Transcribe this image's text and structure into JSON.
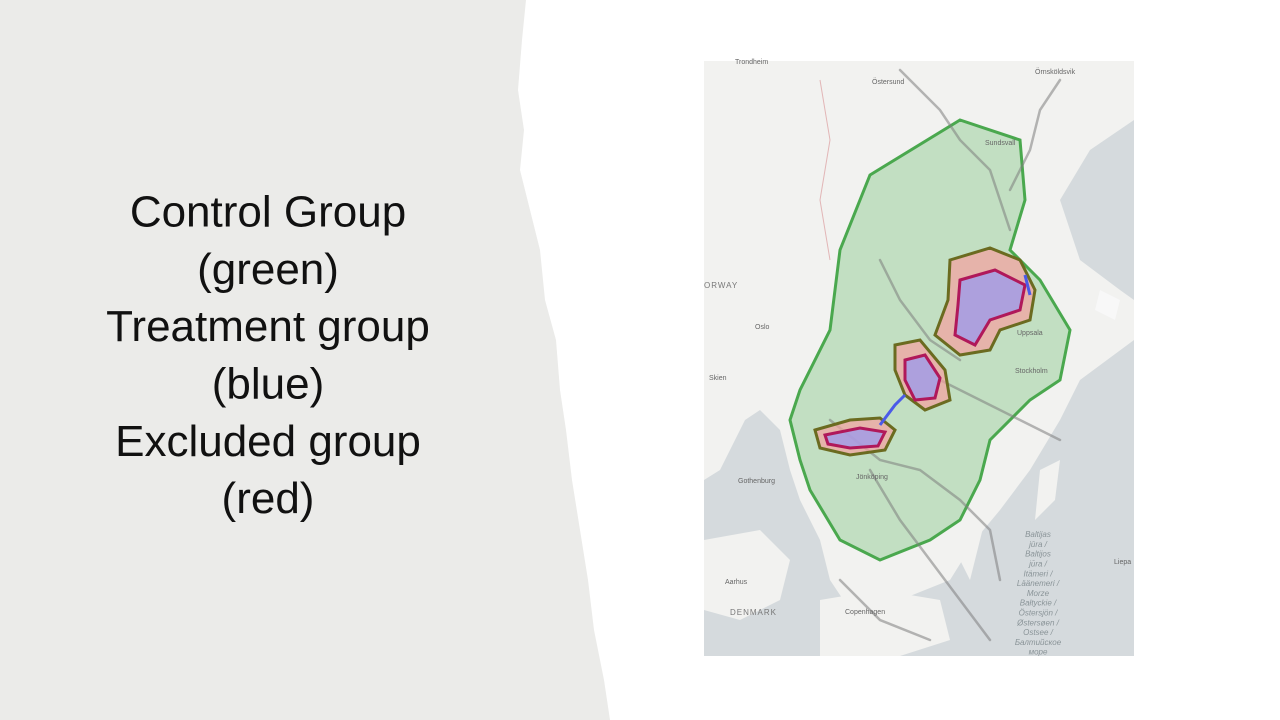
{
  "slide": {
    "text_lines": [
      "Control Group",
      "(green)",
      "Treatment group",
      "(blue)",
      "Excluded group",
      "(red)"
    ],
    "map": {
      "labels": [
        "Trondheim",
        "Östersund",
        "Örnsköldsvik",
        "Sundsvall",
        "ORWAY",
        "Oslo",
        "Skien",
        "Uppsala",
        "Stockholm",
        "Gothenburg",
        "Jönköping",
        "Aarhus",
        "DENMARK",
        "Copenhagen",
        "Liepa"
      ],
      "sea_label": [
        "Baltijas",
        "jūra /",
        "Baltijos",
        "jūra /",
        "Itämeri /",
        "Läänemeri /",
        "Morze",
        "Bałtyckie /",
        "Östersjön /",
        "Østersøen /",
        "Ostsee /",
        "Балтийское",
        "море"
      ]
    }
  }
}
